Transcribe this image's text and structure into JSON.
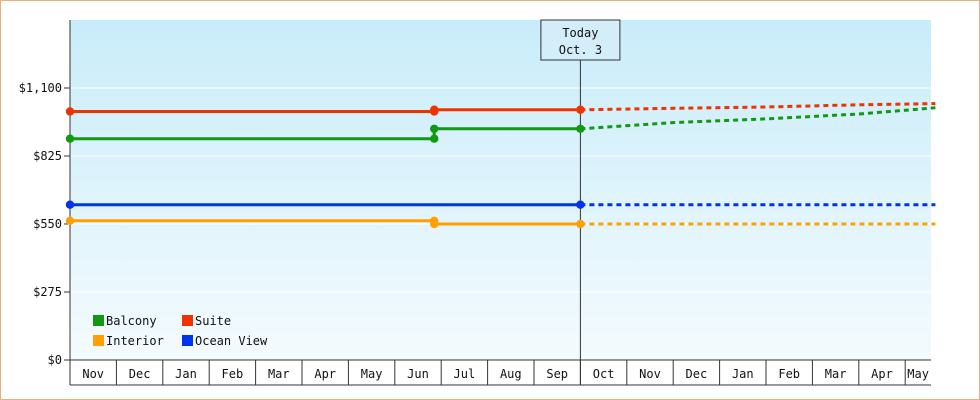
{
  "chart_data": {
    "type": "line",
    "y_ticks": [
      "$0",
      "$275",
      "$550",
      "$825",
      "$1,100"
    ],
    "ylim": [
      0,
      1375
    ],
    "x_months": [
      "Nov",
      "Dec",
      "Jan",
      "Feb",
      "Mar",
      "Apr",
      "May",
      "Jun",
      "Jul",
      "Aug",
      "Sep",
      "Oct",
      "Nov",
      "Dec",
      "Jan",
      "Feb",
      "Mar",
      "Apr",
      "May"
    ],
    "today": {
      "line1": "Today",
      "line2": "Oct. 3",
      "x": 11.0
    },
    "legend": {
      "placement": "bottom-left",
      "entries": [
        {
          "name": "Balcony",
          "color": "#119911"
        },
        {
          "name": "Suite",
          "color": "#ee3300"
        },
        {
          "name": "Interior",
          "color": "#ffa000"
        },
        {
          "name": "Ocean View",
          "color": "#0033ee"
        }
      ]
    },
    "series": [
      {
        "name": "Balcony",
        "color": "#119911",
        "actual": [
          [
            0,
            895
          ],
          [
            7.85,
            895
          ],
          [
            7.85,
            935
          ],
          [
            11.0,
            935
          ]
        ],
        "markers": [
          [
            0,
            895
          ],
          [
            7.85,
            895
          ],
          [
            7.85,
            935
          ],
          [
            11.0,
            935
          ]
        ],
        "forecast": [
          [
            11.0,
            935
          ],
          [
            13.0,
            960
          ],
          [
            15.0,
            975
          ],
          [
            17.0,
            995
          ],
          [
            18.65,
            1020
          ]
        ]
      },
      {
        "name": "Suite",
        "color": "#ee3300",
        "actual": [
          [
            0,
            1005
          ],
          [
            7.85,
            1005
          ],
          [
            7.85,
            1012
          ],
          [
            11.0,
            1012
          ]
        ],
        "markers": [
          [
            0,
            1005
          ],
          [
            7.85,
            1005
          ],
          [
            7.85,
            1012
          ],
          [
            11.0,
            1012
          ]
        ],
        "forecast": [
          [
            11.0,
            1012
          ],
          [
            13.0,
            1018
          ],
          [
            15.0,
            1023
          ],
          [
            17.0,
            1032
          ],
          [
            18.65,
            1037
          ]
        ]
      },
      {
        "name": "Ocean View",
        "color": "#0033ee",
        "actual": [
          [
            0,
            628
          ],
          [
            11.0,
            628
          ]
        ],
        "markers": [
          [
            0,
            628
          ],
          [
            11.0,
            628
          ]
        ],
        "forecast": [
          [
            11.0,
            628
          ],
          [
            18.65,
            628
          ]
        ]
      },
      {
        "name": "Interior",
        "color": "#ffa000",
        "actual": [
          [
            0,
            563
          ],
          [
            7.85,
            563
          ],
          [
            7.85,
            550
          ],
          [
            11.0,
            550
          ]
        ],
        "markers": [
          [
            0,
            563
          ],
          [
            7.85,
            563
          ],
          [
            7.85,
            550
          ],
          [
            11.0,
            550
          ]
        ],
        "forecast": [
          [
            11.0,
            550
          ],
          [
            18.65,
            550
          ]
        ]
      }
    ]
  }
}
